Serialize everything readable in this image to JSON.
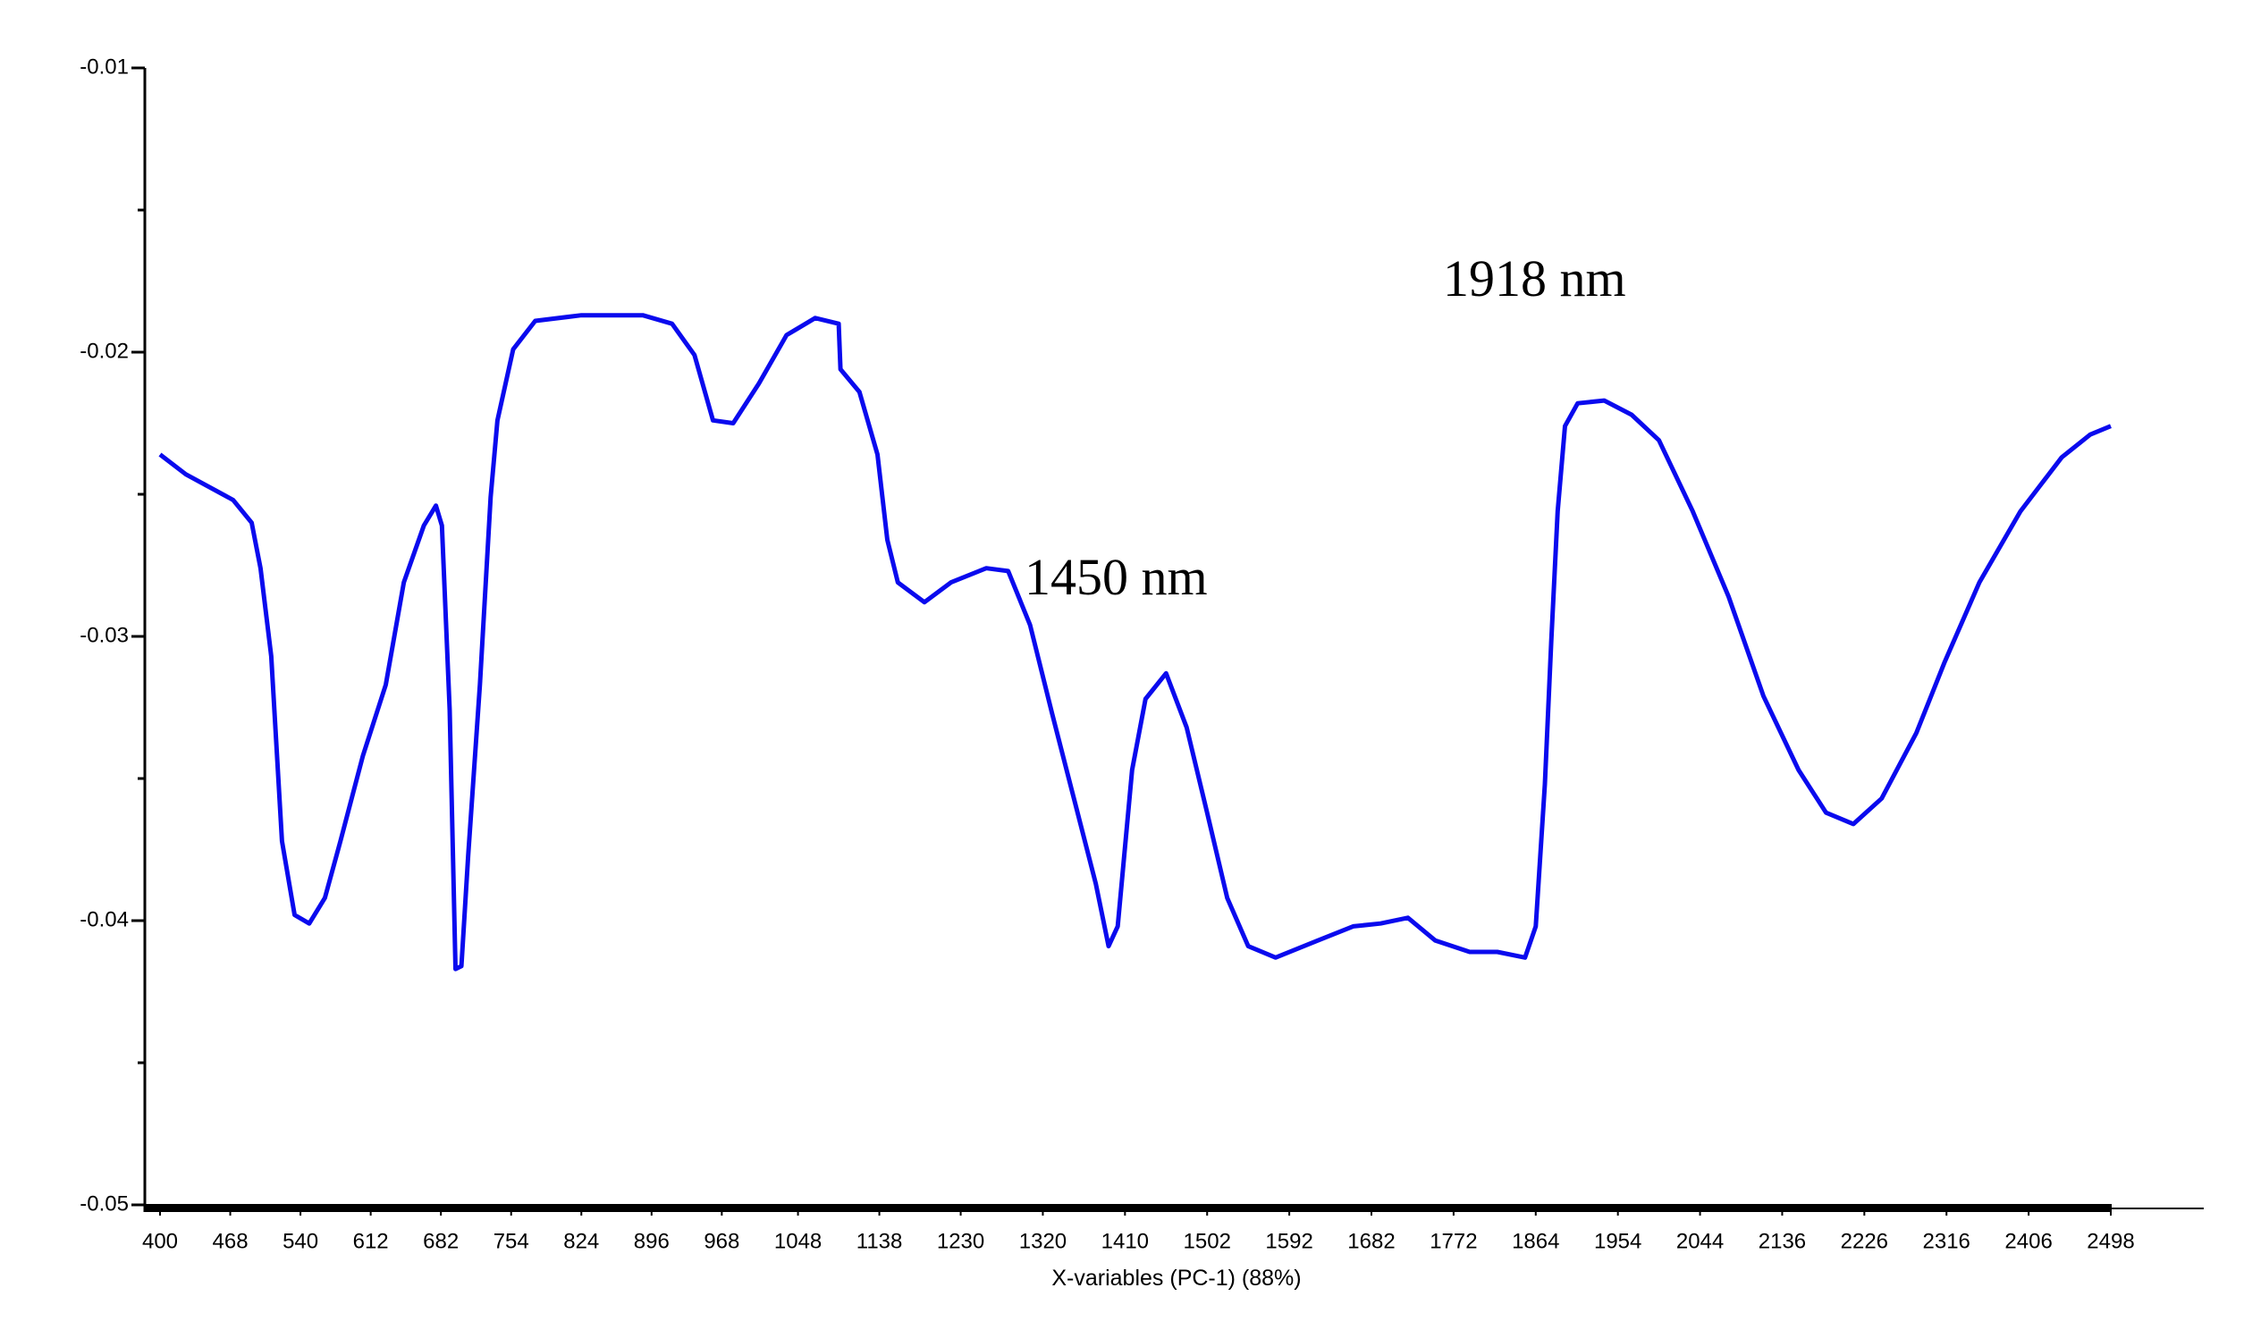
{
  "chart_data": {
    "type": "line",
    "xlabel": "X-variables (PC-1) (88%)",
    "annotations": [
      {
        "text": "1450 nm"
      },
      {
        "text": "1918 nm"
      }
    ],
    "xticks": [
      400,
      468,
      540,
      612,
      682,
      754,
      824,
      896,
      968,
      1048,
      1138,
      1230,
      1320,
      1410,
      1502,
      1592,
      1682,
      1772,
      1864,
      1954,
      2044,
      2136,
      2226,
      2316,
      2406,
      2498
    ],
    "ylim": [
      -0.05,
      -0.01
    ],
    "yticks": [
      -0.05,
      -0.04,
      -0.03,
      -0.02,
      -0.01
    ],
    "yminor_ticks": [
      -0.045,
      -0.035,
      -0.025,
      -0.015
    ],
    "series": [
      {
        "color": "#0a0aee",
        "x": [
          400,
          425,
          471,
          490,
          499,
          510,
          521,
          534,
          549,
          565,
          581,
          604,
          627,
          645,
          665,
          677,
          683,
          691,
          697,
          703,
          710,
          722,
          733,
          740,
          756,
          778,
          824,
          887,
          917,
          940,
          959,
          980,
          1007,
          1036,
          1067,
          1093,
          1095,
          1116,
          1136,
          1147,
          1159,
          1189,
          1219,
          1258,
          1282,
          1306,
          1330,
          1354,
          1378,
          1392,
          1402,
          1418,
          1433,
          1456,
          1479,
          1502,
          1524,
          1547,
          1577,
          1623,
          1662,
          1692,
          1722,
          1752,
          1790,
          1821,
          1852,
          1864,
          1874,
          1881,
          1888,
          1896,
          1910,
          1939,
          1969,
          1999,
          2036,
          2076,
          2115,
          2154,
          2184,
          2214,
          2245,
          2283,
          2314,
          2352,
          2397,
          2443,
          2475,
          2498
        ],
        "values": [
          -0.0236,
          -0.0243,
          -0.0252,
          -0.026,
          -0.0276,
          -0.0307,
          -0.0372,
          -0.0398,
          -0.0401,
          -0.0392,
          -0.0372,
          -0.0342,
          -0.0317,
          -0.0281,
          -0.0261,
          -0.0254,
          -0.0261,
          -0.0326,
          -0.0417,
          -0.0416,
          -0.0377,
          -0.0317,
          -0.0251,
          -0.0224,
          -0.0199,
          -0.0189,
          -0.0187,
          -0.0187,
          -0.019,
          -0.0201,
          -0.0224,
          -0.0225,
          -0.0211,
          -0.0194,
          -0.0188,
          -0.019,
          -0.0206,
          -0.0214,
          -0.0236,
          -0.0266,
          -0.0281,
          -0.0288,
          -0.0281,
          -0.0276,
          -0.0277,
          -0.0296,
          -0.0327,
          -0.0357,
          -0.0387,
          -0.0409,
          -0.0402,
          -0.0347,
          -0.0322,
          -0.0313,
          -0.0332,
          -0.0362,
          -0.0392,
          -0.0409,
          -0.0413,
          -0.0407,
          -0.0402,
          -0.0401,
          -0.0399,
          -0.0407,
          -0.0411,
          -0.0411,
          -0.0413,
          -0.0402,
          -0.0352,
          -0.0302,
          -0.0256,
          -0.0226,
          -0.0218,
          -0.0217,
          -0.0222,
          -0.0231,
          -0.0256,
          -0.0286,
          -0.0321,
          -0.0347,
          -0.0362,
          -0.0366,
          -0.0357,
          -0.0334,
          -0.0309,
          -0.0281,
          -0.0256,
          -0.0237,
          -0.0229,
          -0.0226
        ]
      }
    ]
  }
}
